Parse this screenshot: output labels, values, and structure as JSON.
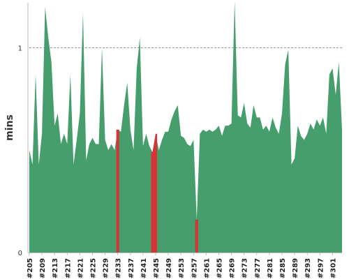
{
  "chart_data": {
    "type": "area",
    "title": "",
    "xlabel": "",
    "ylabel": "mins",
    "ylim": [
      0,
      1.22
    ],
    "yticks": [
      0,
      1
    ],
    "grid": {
      "y_at": [
        1
      ],
      "style": "dashed"
    },
    "x_tick_labels": [
      "#205",
      "#209",
      "#213",
      "#217",
      "#221",
      "#225",
      "#229",
      "#233",
      "#237",
      "#241",
      "#245",
      "#249",
      "#253",
      "#257",
      "#261",
      "#265",
      "#269",
      "#273",
      "#277",
      "#281",
      "#285",
      "#289",
      "#293",
      "#297",
      "#301"
    ],
    "builds": [
      205,
      206,
      207,
      208,
      209,
      210,
      211,
      212,
      213,
      214,
      215,
      216,
      217,
      218,
      219,
      220,
      221,
      222,
      223,
      224,
      225,
      226,
      227,
      228,
      229,
      230,
      231,
      232,
      233,
      234,
      235,
      236,
      237,
      238,
      239,
      240,
      241,
      242,
      243,
      244,
      245,
      246,
      247,
      248,
      249,
      250,
      251,
      252,
      253,
      254,
      255,
      256,
      257,
      258,
      259,
      260,
      261,
      262,
      263,
      264,
      265,
      266,
      267,
      268,
      269,
      270,
      271,
      272,
      273,
      274,
      275,
      276,
      277,
      278,
      279,
      280,
      281,
      282,
      283,
      284,
      285,
      286,
      287,
      288,
      289,
      290,
      291,
      292,
      293,
      294,
      295,
      296,
      297,
      298,
      299,
      300,
      301,
      302,
      303,
      304
    ],
    "values": [
      0.5,
      0.43,
      0.87,
      0.43,
      0.58,
      1.2,
      1.05,
      0.93,
      0.62,
      0.68,
      0.53,
      0.58,
      0.53,
      0.87,
      0.43,
      0.55,
      0.68,
      1.17,
      0.45,
      0.53,
      0.56,
      0.53,
      0.53,
      1.0,
      0.55,
      0.5,
      0.53,
      0.5,
      0.6,
      0.59,
      0.72,
      0.83,
      0.6,
      0.5,
      0.9,
      1.05,
      0.52,
      0.58,
      0.52,
      0.49,
      0.58,
      0.5,
      0.55,
      0.59,
      0.59,
      0.65,
      0.69,
      0.72,
      0.57,
      0.56,
      0.53,
      0.52,
      0.55,
      0.16,
      0.58,
      0.6,
      0.59,
      0.6,
      0.59,
      0.6,
      0.62,
      0.57,
      0.62,
      0.62,
      0.63,
      1.23,
      0.67,
      0.66,
      0.73,
      0.63,
      0.61,
      0.72,
      0.66,
      0.66,
      0.6,
      0.62,
      0.59,
      0.66,
      0.61,
      0.58,
      0.68,
      0.92,
      0.99,
      0.43,
      0.46,
      0.62,
      0.57,
      0.55,
      0.58,
      0.63,
      0.6,
      0.65,
      0.62,
      0.66,
      0.58,
      0.87,
      0.9,
      0.77,
      0.93,
      0.6
    ],
    "failed_builds": [
      233,
      244,
      245,
      258
    ],
    "colors": {
      "success": "#459e6b",
      "failure": "#d83334",
      "grid": "#888888",
      "axis": "#bbbbbb"
    }
  }
}
